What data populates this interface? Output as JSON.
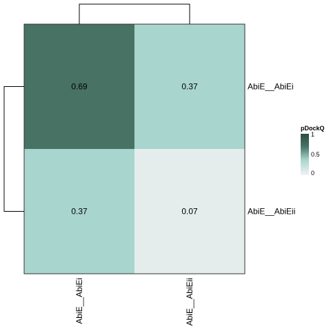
{
  "chart_data": {
    "type": "heatmap",
    "rows": [
      "AbiE__AbiEi",
      "AbiE__AbiEii"
    ],
    "columns": [
      "AbiE__AbiEi",
      "AbiE__AbiEii"
    ],
    "values": [
      [
        0.69,
        0.37
      ],
      [
        0.37,
        0.07
      ]
    ],
    "cell_labels": [
      [
        "0.69",
        "0.37"
      ],
      [
        "0.37",
        "0.07"
      ]
    ],
    "legend": {
      "title": "pDockQ",
      "ticks": [
        {
          "value": 1,
          "label": "1"
        },
        {
          "value": 0.5,
          "label": "0.5"
        },
        {
          "value": 0,
          "label": "0"
        }
      ],
      "placement": "right"
    },
    "color_scale": {
      "domain": [
        0,
        0.37,
        0.69,
        1
      ],
      "colors": [
        "#f2f2f2",
        "#a8d5cd",
        "#477264",
        "#2d4d42"
      ]
    },
    "row_dendrogram": true,
    "column_dendrogram": true
  }
}
